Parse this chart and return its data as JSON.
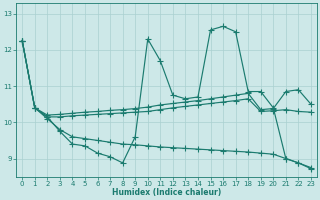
{
  "xlabel": "Humidex (Indice chaleur)",
  "line_color": "#1b7b6f",
  "bg_color": "#cde8e8",
  "grid_color": "#aad0d0",
  "xlim": [
    0,
    23
  ],
  "ylim": [
    8.5,
    13.3
  ],
  "yticks": [
    9,
    10,
    11,
    12,
    13
  ],
  "xticks": [
    0,
    1,
    2,
    3,
    4,
    5,
    6,
    7,
    8,
    9,
    10,
    11,
    12,
    13,
    14,
    15,
    16,
    17,
    18,
    19,
    20,
    21,
    22,
    23
  ],
  "line_volatile": [
    12.25,
    10.4,
    10.15,
    9.75,
    9.4,
    9.35,
    9.15,
    9.05,
    8.88,
    9.6,
    12.3,
    11.7,
    10.75,
    10.65,
    10.7,
    12.55,
    12.65,
    12.5,
    10.85,
    10.85,
    10.4,
    9.0,
    8.88,
    8.75
  ],
  "line_upper": [
    12.25,
    10.4,
    10.2,
    10.22,
    10.25,
    10.28,
    10.3,
    10.33,
    10.35,
    10.38,
    10.42,
    10.48,
    10.52,
    10.56,
    10.6,
    10.65,
    10.7,
    10.75,
    10.8,
    10.35,
    10.38,
    10.85,
    10.9,
    10.5
  ],
  "line_mid": [
    12.25,
    10.4,
    10.15,
    10.15,
    10.18,
    10.2,
    10.22,
    10.24,
    10.26,
    10.28,
    10.3,
    10.35,
    10.4,
    10.44,
    10.48,
    10.52,
    10.56,
    10.6,
    10.65,
    10.3,
    10.32,
    10.35,
    10.3,
    10.28
  ],
  "line_lower": [
    12.25,
    10.4,
    10.1,
    9.8,
    9.6,
    9.55,
    9.5,
    9.45,
    9.4,
    9.38,
    9.35,
    9.32,
    9.3,
    9.28,
    9.26,
    9.24,
    9.22,
    9.2,
    9.18,
    9.15,
    9.12,
    9.0,
    8.88,
    8.72
  ]
}
